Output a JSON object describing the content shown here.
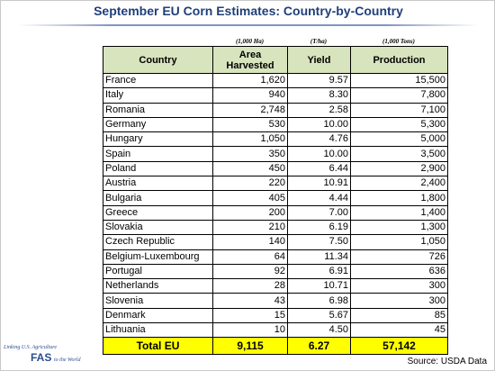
{
  "title": "September EU Corn Estimates:  Country-by-Country",
  "table": {
    "units": {
      "area": "(1,000 Ha)",
      "yield": "(T/ha)",
      "production": "(1,000 Tons)"
    },
    "header": [
      "Country",
      "Area Harvested",
      "Yield",
      "Production"
    ],
    "rows": [
      [
        "France",
        "1,620",
        "9.57",
        "15,500"
      ],
      [
        "Italy",
        "940",
        "8.30",
        "7,800"
      ],
      [
        "Romania",
        "2,748",
        "2.58",
        "7,100"
      ],
      [
        "Germany",
        "530",
        "10.00",
        "5,300"
      ],
      [
        "Hungary",
        "1,050",
        "4.76",
        "5,000"
      ],
      [
        "Spain",
        "350",
        "10.00",
        "3,500"
      ],
      [
        "Poland",
        "450",
        "6.44",
        "2,900"
      ],
      [
        "Austria",
        "220",
        "10.91",
        "2,400"
      ],
      [
        "Bulgaria",
        "405",
        "4.44",
        "1,800"
      ],
      [
        "Greece",
        "200",
        "7.00",
        "1,400"
      ],
      [
        "Slovakia",
        "210",
        "6.19",
        "1,300"
      ],
      [
        "Czech Republic",
        "140",
        "7.50",
        "1,050"
      ],
      [
        "Belgium-Luxembourg",
        "64",
        "11.34",
        "726"
      ],
      [
        "Portugal",
        "92",
        "6.91",
        "636"
      ],
      [
        "Netherlands",
        "28",
        "10.71",
        "300"
      ],
      [
        "Slovenia",
        "43",
        "6.98",
        "300"
      ],
      [
        "Denmark",
        "15",
        "5.67",
        "85"
      ],
      [
        "Lithuania",
        "10",
        "4.50",
        "45"
      ]
    ],
    "total": [
      "Total EU",
      "9,115",
      "6.27",
      "57,142"
    ]
  },
  "source": "Source: USDA Data",
  "logo": {
    "line1": "Linking U.S. Agriculture",
    "mark": "FAS",
    "line2": "to the World"
  }
}
